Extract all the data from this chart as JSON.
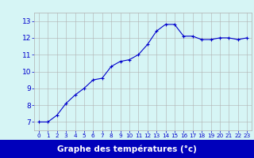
{
  "hours": [
    0,
    1,
    2,
    3,
    4,
    5,
    6,
    7,
    8,
    9,
    10,
    11,
    12,
    13,
    14,
    15,
    16,
    17,
    18,
    19,
    20,
    21,
    22,
    23
  ],
  "temperatures": [
    7.0,
    7.0,
    7.4,
    8.1,
    8.6,
    9.0,
    9.5,
    9.6,
    10.3,
    10.6,
    10.7,
    11.0,
    11.6,
    12.4,
    12.8,
    12.8,
    12.1,
    12.1,
    11.9,
    11.9,
    12.0,
    12.0,
    11.9,
    12.0
  ],
  "line_color": "#0000cc",
  "marker_color": "#0000cc",
  "bg_color": "#d6f5f5",
  "grid_color": "#b0b0b0",
  "xlabel": "Graphe des températures (°c)",
  "tick_color": "#0000cc",
  "ylim": [
    6.5,
    13.5
  ],
  "xlim": [
    -0.5,
    23.5
  ],
  "yticks": [
    7,
    8,
    9,
    10,
    11,
    12,
    13
  ],
  "xtick_labels": [
    "0",
    "1",
    "2",
    "3",
    "4",
    "5",
    "6",
    "7",
    "8",
    "9",
    "10",
    "11",
    "12",
    "13",
    "14",
    "15",
    "16",
    "17",
    "18",
    "19",
    "20",
    "21",
    "22",
    "23"
  ],
  "bottom_bar_color": "#0000bb",
  "bottom_text_color": "#ffffff"
}
